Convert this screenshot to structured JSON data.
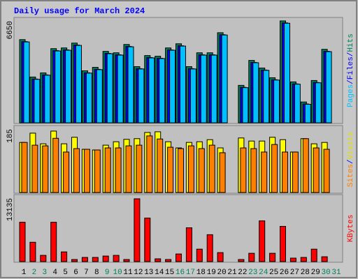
{
  "title": "Daily usage for March 2024",
  "legend_separator": "/",
  "chart_data": [
    {
      "type": "bar",
      "ylim": [
        0,
        6650
      ],
      "yticks": [
        6650
      ],
      "series": [
        {
          "name": "Hits",
          "color": "#00805c",
          "values": [
            5429,
            2986,
            3257,
            4840,
            4886,
            5202,
            3393,
            3619,
            4660,
            4569,
            5112,
            3664,
            4388,
            4343,
            4886,
            5157,
            3664,
            4569,
            4569,
            5881,
            null,
            2443,
            4071,
            3574,
            2940,
            6650,
            2669,
            1357,
            2760,
            4795,
            null
          ]
        },
        {
          "name": "Files",
          "color": "#0000ff",
          "values": [
            5299,
            2856,
            3127,
            4710,
            4756,
            5072,
            3263,
            3489,
            4530,
            4439,
            4982,
            3534,
            4258,
            4213,
            4756,
            5027,
            3534,
            4439,
            4439,
            5751,
            null,
            2313,
            3941,
            3444,
            2810,
            6520,
            2539,
            1227,
            2630,
            4665,
            null
          ]
        },
        {
          "name": "Pages",
          "color": "#00c0ff",
          "values": [
            5279,
            2836,
            3107,
            4690,
            4736,
            5052,
            3243,
            3469,
            4510,
            4419,
            4962,
            3514,
            4238,
            4193,
            4736,
            5007,
            3514,
            4419,
            4419,
            5731,
            null,
            2293,
            3921,
            3424,
            2790,
            6500,
            2519,
            1207,
            2610,
            4645,
            null
          ]
        }
      ]
    },
    {
      "type": "bar",
      "ylim": [
        0,
        185
      ],
      "yticks": [
        185
      ],
      "series": [
        {
          "name": "Visits",
          "color": "#ffff00",
          "values": [
            146,
            173,
            142,
            179,
            142,
            161,
            126,
            124,
            138,
            148,
            155,
            157,
            175,
            177,
            148,
            130,
            146,
            148,
            154,
            130,
            null,
            159,
            150,
            150,
            161,
            154,
            118,
            157,
            142,
            146,
            null
          ]
        },
        {
          "name": "Sites",
          "color": "#ff8000",
          "values": [
            146,
            138,
            136,
            158,
            118,
            128,
            126,
            124,
            130,
            130,
            136,
            138,
            165,
            156,
            132,
            128,
            136,
            128,
            138,
            116,
            null,
            130,
            128,
            118,
            140,
            118,
            118,
            157,
            130,
            126,
            null
          ]
        }
      ]
    },
    {
      "type": "bar",
      "ylim": [
        0,
        13135
      ],
      "yticks": [
        13135
      ],
      "series": [
        {
          "name": "KBytes",
          "color": "#ff0000",
          "values": [
            8138,
            3998,
            1285,
            8138,
            1999,
            428,
            857,
            857,
            1142,
            1285,
            428,
            12993,
            8995,
            571,
            428,
            1571,
            6996,
            2570,
            5568,
            1856,
            null,
            428,
            1713,
            8424,
            1713,
            7282,
            714,
            857,
            2570,
            999,
            null
          ]
        }
      ],
      "categories": [
        "1",
        "2",
        "3",
        "4",
        "5",
        "6",
        "7",
        "8",
        "9",
        "10",
        "11",
        "12",
        "13",
        "14",
        "15",
        "16",
        "17",
        "18",
        "19",
        "20",
        "21",
        "22",
        "23",
        "24",
        "25",
        "26",
        "27",
        "28",
        "29",
        "30",
        "31"
      ],
      "category_colors": [
        "#000000",
        "#00805c",
        "#00805c",
        "#000000",
        "#000000",
        "#000000",
        "#000000",
        "#000000",
        "#00805c",
        "#00805c",
        "#000000",
        "#000000",
        "#000000",
        "#000000",
        "#000000",
        "#00805c",
        "#00805c",
        "#000000",
        "#000000",
        "#000000",
        "#000000",
        "#000000",
        "#00805c",
        "#00805c",
        "#000000",
        "#000000",
        "#000000",
        "#000000",
        "#000000",
        "#00805c",
        "#00805c"
      ]
    }
  ]
}
